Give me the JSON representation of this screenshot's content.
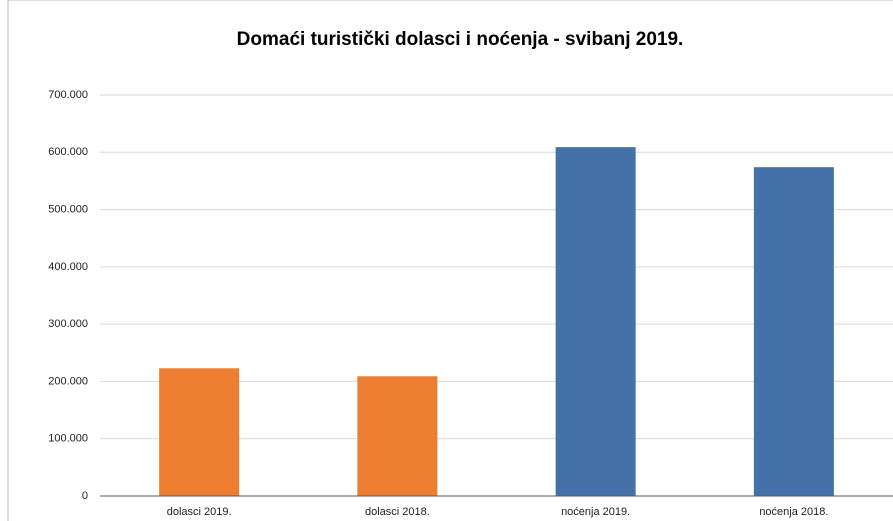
{
  "chart_data": {
    "type": "bar",
    "title": "Domaći turistički dolasci i noćenja - svibanj 2019.",
    "categories": [
      "dolasci 2019.",
      "dolasci 2018.",
      "noćenja 2019.",
      "noćenja 2018."
    ],
    "values": [
      223000,
      209000,
      609000,
      574000
    ],
    "colors": [
      "#ed7d31",
      "#ed7d31",
      "#4472a8",
      "#4472a8"
    ],
    "ylim": [
      0,
      700000
    ],
    "yticks": [
      0,
      {
        "value": 100000,
        "label": "100.000"
      },
      {
        "value": 200000,
        "label": "200.000"
      },
      {
        "value": 300000,
        "label": "300.000"
      },
      {
        "value": 400000,
        "label": "400.000"
      },
      {
        "value": 500000,
        "label": "500.000"
      },
      {
        "value": 600000,
        "label": "600.000"
      },
      {
        "value": 700000,
        "label": "700.000"
      }
    ],
    "grid": true
  }
}
